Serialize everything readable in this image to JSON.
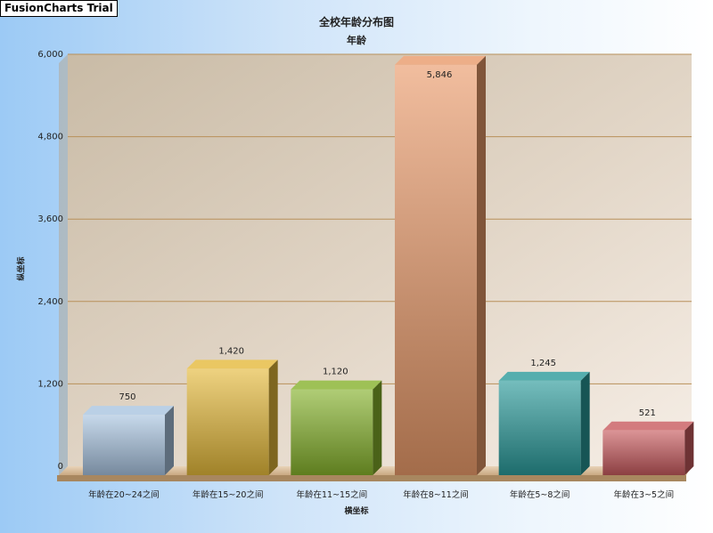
{
  "watermark": "FusionCharts Trial",
  "chart_data": {
    "type": "bar",
    "title": "全校年龄分布图",
    "subtitle": "年龄",
    "xlabel": "横坐标",
    "ylabel": "纵坐标",
    "ylim": [
      0,
      6000
    ],
    "yticks": [
      "0",
      "1,200",
      "2,400",
      "3,600",
      "4,800",
      "6,000"
    ],
    "tick_values": [
      0,
      1200,
      2400,
      3600,
      4800,
      6000
    ],
    "grid": true,
    "categories": [
      "年龄在20~24之间",
      "年龄在15~20之间",
      "年龄在11~15之间",
      "年龄在8~11之间",
      "年龄在5~8之间",
      "年龄在3~5之间"
    ],
    "values": [
      750,
      1420,
      1120,
      5846,
      1245,
      521
    ],
    "value_labels": [
      "750",
      "1,420",
      "1,120",
      "5,846",
      "1,245",
      "521"
    ],
    "colors": [
      "#a9c4e0",
      "#e5b93b",
      "#86b22c",
      "#e99a6a",
      "#2a9a9a",
      "#c85a5e"
    ]
  }
}
